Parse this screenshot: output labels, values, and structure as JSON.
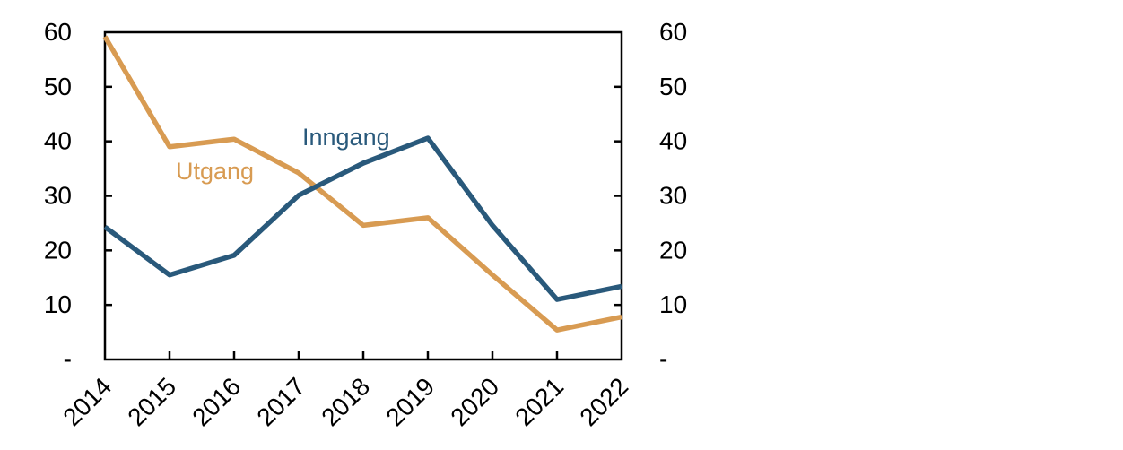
{
  "chart_data": {
    "type": "line",
    "categories": [
      "2014",
      "2015",
      "2016",
      "2017",
      "2018",
      "2019",
      "2020",
      "2021",
      "2022"
    ],
    "series": [
      {
        "name": "Inngang",
        "color": "#29597B",
        "values": [
          24.3,
          15.5,
          19.1,
          30.1,
          36.0,
          40.6,
          24.6,
          11.0,
          13.4
        ]
      },
      {
        "name": "Utgang",
        "color": "#D89B52",
        "values": [
          59.2,
          39.0,
          40.4,
          34.2,
          24.6,
          26.0,
          15.5,
          5.4,
          7.8
        ]
      }
    ],
    "title": "",
    "xlabel": "",
    "ylabel": "",
    "ylim": [
      0,
      60
    ],
    "y_ticks": [
      {
        "label": "60",
        "value": 60
      },
      {
        "label": "50",
        "value": 50
      },
      {
        "label": "40",
        "value": 40
      },
      {
        "label": "30",
        "value": 30
      },
      {
        "label": "20",
        "value": 20
      },
      {
        "label": "10",
        "value": 10
      },
      {
        "label": "-",
        "value": 0
      }
    ],
    "secondary_y_axis": true,
    "grid": false,
    "x_label_rotation_deg": 45,
    "legend_position": "inline-labels",
    "axis_color": "#000000",
    "background_color": "#FFFFFF"
  }
}
